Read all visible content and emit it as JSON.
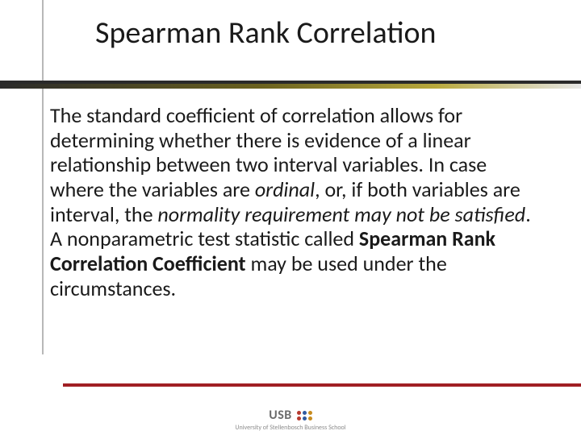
{
  "slide": {
    "title": "Spearman Rank Correlation",
    "title_fontsize": 38,
    "title_color": "#1a1a1a",
    "body": {
      "fontsize": 26,
      "line_height": 1.18,
      "color": "#1a1a1a",
      "segments": {
        "s1": "The standard coefficient of correlation allows for determining whether there is evidence of a linear relationship between two interval variables. ",
        "s2": "In case where the variables are ",
        "s3_em": "ordinal",
        "s4": ", or, if both variables are interval, the ",
        "s5_em": "normality requirement may not be satisfied",
        "s6": ". A nonparametric test statistic called ",
        "s7_strong": "Spearman Rank Correlation Coefficient",
        "s8": " may be used under the circumstances."
      }
    },
    "left_rule_color": "#b8b8b8",
    "hrule": {
      "base_color": "#2a2a2a",
      "gradient": [
        "#2a2a2a",
        "#6b621f",
        "#b9a93c",
        "#e6e6e6"
      ]
    },
    "bottom_rule_color": "#a01f24",
    "footer": {
      "logo_text": "USB",
      "logo_text_color": "#6b6b6b",
      "logo_fontsize": 16,
      "dot_colors": [
        "#b63a2f",
        "#2e5aa0",
        "#c78b1e",
        "#b63a2f",
        "#2e5aa0",
        "#c78b1e"
      ],
      "sub_text": "University of Stellenbosch Business School",
      "sub_fontsize": 8,
      "sub_color": "#8c8c8c"
    }
  }
}
